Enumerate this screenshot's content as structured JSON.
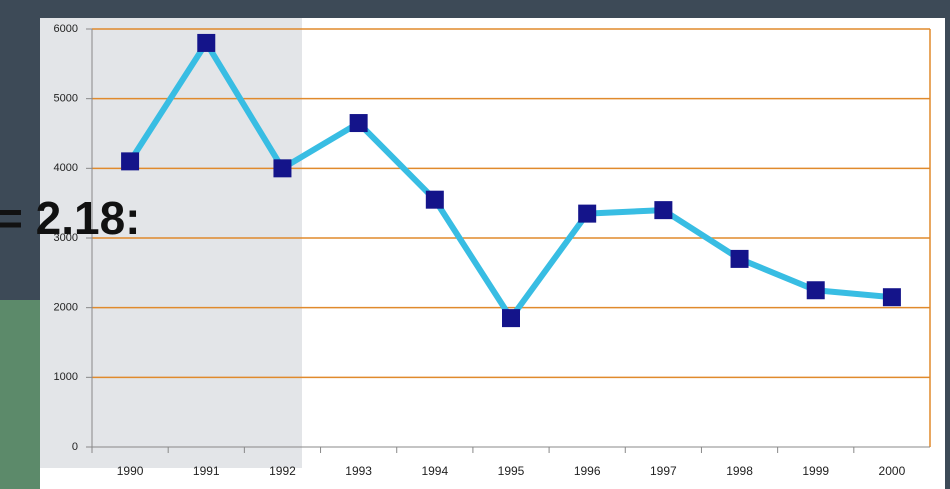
{
  "chart_data": {
    "type": "line",
    "annotation": "= 2.18:",
    "categories": [
      "1990",
      "1991",
      "1992",
      "1993",
      "1994",
      "1995",
      "1996",
      "1997",
      "1998",
      "1999",
      "2000"
    ],
    "values": [
      4100,
      5800,
      4000,
      4650,
      3550,
      1850,
      3350,
      3400,
      2700,
      2250,
      2150
    ],
    "color": "#38bde3",
    "marker_color": "#14148a",
    "grid_color": "#e08a2c",
    "ylim": [
      0,
      6000
    ],
    "yticks": [
      0,
      1000,
      2000,
      3000,
      4000,
      5000,
      6000
    ],
    "grid": true
  }
}
